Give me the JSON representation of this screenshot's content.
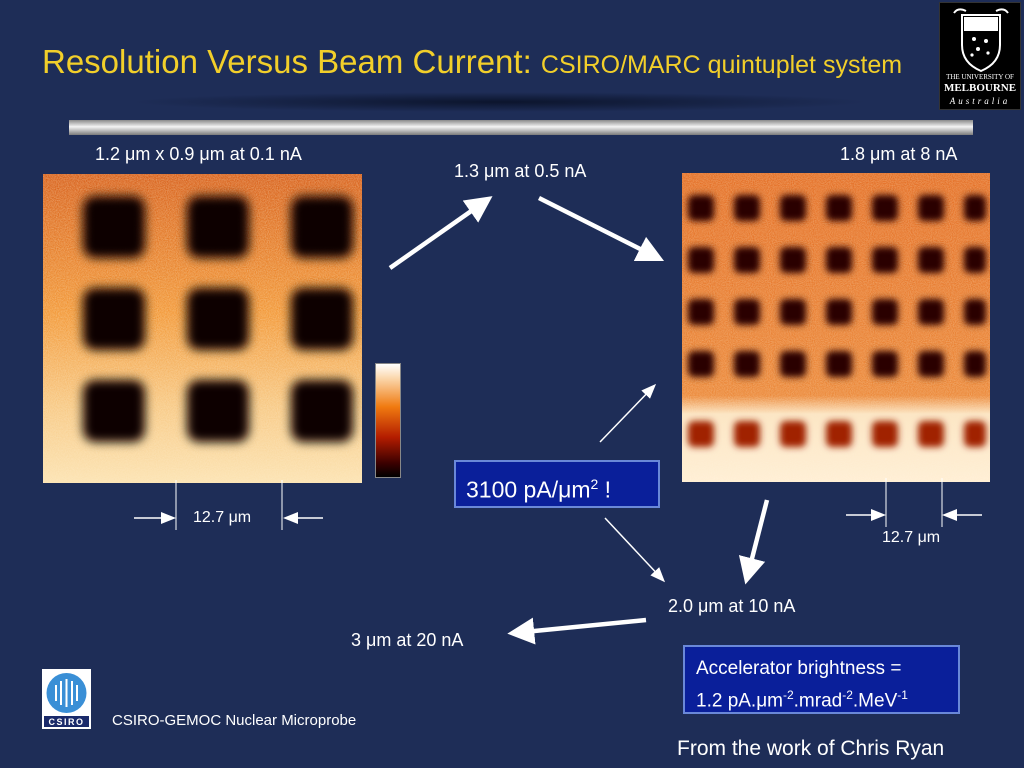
{
  "title": {
    "main": "Resolution Versus Beam Current:",
    "sub": "CSIRO/MARC quintuplet system"
  },
  "logo_um": {
    "line1": "THE UNIVERSITY OF",
    "line2": "MELBOURNE",
    "line3": "Australia"
  },
  "images": {
    "left_label": "1.2 μm x 0.9 μm at 0.1 nA",
    "right_label": "1.8 μm at 8 nA",
    "left_scale": "12.7 μm",
    "right_scale": "12.7 μm"
  },
  "labels": {
    "top_middle": "1.3 μm at 0.5 nA",
    "bottom_right": "2.0 μm at 10 nA",
    "bottom_left": "3 μm at 20 nA"
  },
  "brightness_box": {
    "base": "3100 pA/μm",
    "sup": "2",
    "tail": " !"
  },
  "accelerator_box": {
    "line1": "Accelerator brightness =",
    "line2_parts": [
      "1.2 pA.μm",
      "-2",
      ".mrad",
      "-2",
      ".MeV",
      "-1"
    ]
  },
  "footer": {
    "csiro_logo_text": "CSIRO",
    "csiro_caption": "CSIRO-GEMOC Nuclear Microprobe",
    "credit": "From the work of Chris Ryan"
  },
  "colors": {
    "background": "#1e2d57",
    "title": "#f2cf2a",
    "box_fill": "#0a1f9a"
  }
}
